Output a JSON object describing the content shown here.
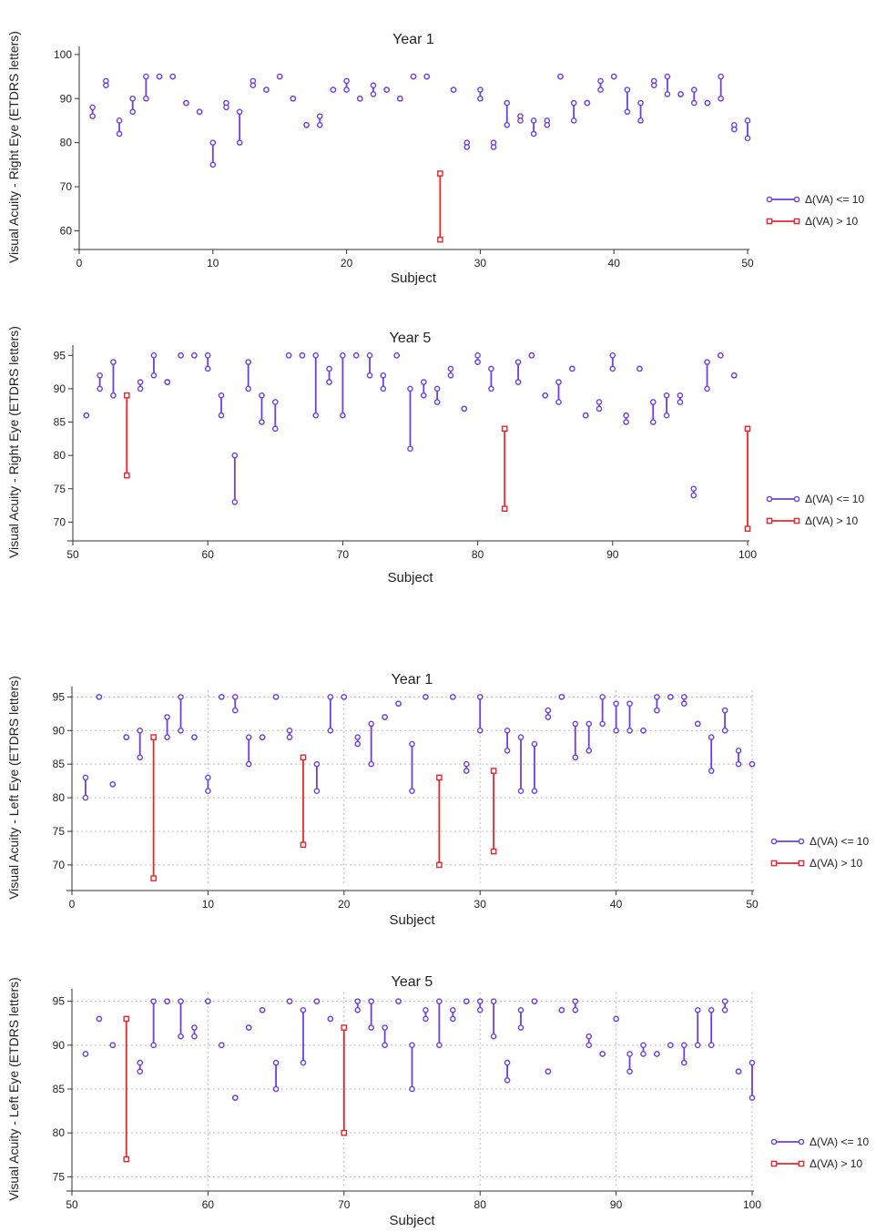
{
  "colors": {
    "small_change": "#6a3ee8",
    "large_change": "#e8252b",
    "grid": "#bdbdbd",
    "axis": "#333333"
  },
  "legend": {
    "small_label": "Δ(VA) <= 10",
    "large_label": "Δ(VA) > 10"
  },
  "chart_data": [
    {
      "type": "dumbbell",
      "title": "Year 1",
      "xlabel": "Subject",
      "ylabel": "Visual Acuity - Right Eye (ETDRS letters)",
      "xlim": [
        0,
        50
      ],
      "ylim": [
        57,
        101
      ],
      "xticks": [
        0,
        10,
        20,
        30,
        40,
        50
      ],
      "yticks": [
        60,
        70,
        80,
        90,
        100
      ],
      "grid": false,
      "legend_position": "right",
      "points": [
        {
          "x": 1,
          "a": 88,
          "b": 86
        },
        {
          "x": 2,
          "a": 94,
          "b": 93
        },
        {
          "x": 3,
          "a": 85,
          "b": 82
        },
        {
          "x": 4,
          "a": 90,
          "b": 87
        },
        {
          "x": 5,
          "a": 95,
          "b": 90
        },
        {
          "x": 6,
          "a": 95,
          "b": 95
        },
        {
          "x": 7,
          "a": 95,
          "b": 95
        },
        {
          "x": 8,
          "a": 89,
          "b": 89
        },
        {
          "x": 9,
          "a": 87,
          "b": 87
        },
        {
          "x": 10,
          "a": 80,
          "b": 75
        },
        {
          "x": 11,
          "a": 89,
          "b": 88
        },
        {
          "x": 12,
          "a": 87,
          "b": 80
        },
        {
          "x": 13,
          "a": 94,
          "b": 93
        },
        {
          "x": 14,
          "a": 92,
          "b": 92
        },
        {
          "x": 15,
          "a": 95,
          "b": 95
        },
        {
          "x": 16,
          "a": 90,
          "b": 90
        },
        {
          "x": 17,
          "a": 84,
          "b": 84
        },
        {
          "x": 18,
          "a": 86,
          "b": 84
        },
        {
          "x": 19,
          "a": 92,
          "b": 92
        },
        {
          "x": 20,
          "a": 94,
          "b": 92
        },
        {
          "x": 21,
          "a": 90,
          "b": 90
        },
        {
          "x": 22,
          "a": 93,
          "b": 91
        },
        {
          "x": 23,
          "a": 92,
          "b": 92
        },
        {
          "x": 24,
          "a": 90,
          "b": 90
        },
        {
          "x": 25,
          "a": 95,
          "b": 95
        },
        {
          "x": 26,
          "a": 95,
          "b": 95
        },
        {
          "x": 27,
          "a": 73,
          "b": 58
        },
        {
          "x": 28,
          "a": 92,
          "b": 92
        },
        {
          "x": 29,
          "a": 80,
          "b": 79
        },
        {
          "x": 30,
          "a": 92,
          "b": 90
        },
        {
          "x": 31,
          "a": 80,
          "b": 79
        },
        {
          "x": 32,
          "a": 89,
          "b": 84
        },
        {
          "x": 33,
          "a": 86,
          "b": 85
        },
        {
          "x": 34,
          "a": 85,
          "b": 82
        },
        {
          "x": 35,
          "a": 85,
          "b": 84
        },
        {
          "x": 36,
          "a": 95,
          "b": 95
        },
        {
          "x": 37,
          "a": 89,
          "b": 85
        },
        {
          "x": 38,
          "a": 89,
          "b": 89
        },
        {
          "x": 39,
          "a": 94,
          "b": 92
        },
        {
          "x": 40,
          "a": 95,
          "b": 95
        },
        {
          "x": 41,
          "a": 92,
          "b": 87
        },
        {
          "x": 42,
          "a": 89,
          "b": 85
        },
        {
          "x": 43,
          "a": 94,
          "b": 93
        },
        {
          "x": 44,
          "a": 95,
          "b": 91
        },
        {
          "x": 45,
          "a": 91,
          "b": 91
        },
        {
          "x": 46,
          "a": 92,
          "b": 89
        },
        {
          "x": 47,
          "a": 89,
          "b": 89
        },
        {
          "x": 48,
          "a": 95,
          "b": 90
        },
        {
          "x": 49,
          "a": 84,
          "b": 83
        },
        {
          "x": 50,
          "a": 85,
          "b": 81
        }
      ]
    },
    {
      "type": "dumbbell",
      "title": "Year 5",
      "xlabel": "Subject",
      "ylabel": "Visual Acuity - Right Eye (ETDRS letters)",
      "xlim": [
        50,
        100
      ],
      "ylim": [
        68,
        96
      ],
      "xticks": [
        50,
        60,
        70,
        80,
        90,
        100
      ],
      "yticks": [
        70,
        75,
        80,
        85,
        90,
        95
      ],
      "grid": false,
      "legend_position": "right",
      "points": [
        {
          "x": 51,
          "a": 86,
          "b": 86
        },
        {
          "x": 52,
          "a": 92,
          "b": 90
        },
        {
          "x": 53,
          "a": 94,
          "b": 89
        },
        {
          "x": 54,
          "a": 89,
          "b": 77
        },
        {
          "x": 55,
          "a": 91,
          "b": 90
        },
        {
          "x": 56,
          "a": 95,
          "b": 92
        },
        {
          "x": 57,
          "a": 91,
          "b": 91
        },
        {
          "x": 58,
          "a": 95,
          "b": 95
        },
        {
          "x": 59,
          "a": 95,
          "b": 95
        },
        {
          "x": 60,
          "a": 95,
          "b": 93
        },
        {
          "x": 61,
          "a": 89,
          "b": 86
        },
        {
          "x": 62,
          "a": 80,
          "b": 73
        },
        {
          "x": 63,
          "a": 94,
          "b": 90
        },
        {
          "x": 64,
          "a": 89,
          "b": 85
        },
        {
          "x": 65,
          "a": 88,
          "b": 84
        },
        {
          "x": 66,
          "a": 95,
          "b": 95
        },
        {
          "x": 67,
          "a": 95,
          "b": 95
        },
        {
          "x": 68,
          "a": 95,
          "b": 86
        },
        {
          "x": 69,
          "a": 93,
          "b": 91
        },
        {
          "x": 70,
          "a": 95,
          "b": 86
        },
        {
          "x": 71,
          "a": 95,
          "b": 95
        },
        {
          "x": 72,
          "a": 95,
          "b": 92
        },
        {
          "x": 73,
          "a": 92,
          "b": 90
        },
        {
          "x": 74,
          "a": 95,
          "b": 95
        },
        {
          "x": 75,
          "a": 90,
          "b": 81
        },
        {
          "x": 76,
          "a": 91,
          "b": 89
        },
        {
          "x": 77,
          "a": 90,
          "b": 88
        },
        {
          "x": 78,
          "a": 93,
          "b": 92
        },
        {
          "x": 79,
          "a": 87,
          "b": 87
        },
        {
          "x": 80,
          "a": 95,
          "b": 94
        },
        {
          "x": 81,
          "a": 93,
          "b": 90
        },
        {
          "x": 82,
          "a": 84,
          "b": 72
        },
        {
          "x": 83,
          "a": 94,
          "b": 91
        },
        {
          "x": 84,
          "a": 95,
          "b": 95
        },
        {
          "x": 85,
          "a": 89,
          "b": 89
        },
        {
          "x": 86,
          "a": 91,
          "b": 88
        },
        {
          "x": 87,
          "a": 93,
          "b": 93
        },
        {
          "x": 88,
          "a": 86,
          "b": 86
        },
        {
          "x": 89,
          "a": 88,
          "b": 87
        },
        {
          "x": 90,
          "a": 95,
          "b": 93
        },
        {
          "x": 91,
          "a": 86,
          "b": 85
        },
        {
          "x": 92,
          "a": 93,
          "b": 93
        },
        {
          "x": 93,
          "a": 88,
          "b": 85
        },
        {
          "x": 94,
          "a": 89,
          "b": 86
        },
        {
          "x": 95,
          "a": 89,
          "b": 88
        },
        {
          "x": 96,
          "a": 75,
          "b": 74
        },
        {
          "x": 97,
          "a": 94,
          "b": 90
        },
        {
          "x": 98,
          "a": 95,
          "b": 95
        },
        {
          "x": 99,
          "a": 92,
          "b": 92
        },
        {
          "x": 100,
          "a": 84,
          "b": 69
        }
      ]
    },
    {
      "type": "dumbbell",
      "title": "Year 1",
      "xlabel": "Subject",
      "ylabel": "Visual Acuity - Left Eye (ETDRS letters)",
      "xlim": [
        0,
        50
      ],
      "ylim": [
        67,
        96
      ],
      "xticks": [
        0,
        10,
        20,
        30,
        40,
        50
      ],
      "yticks": [
        70,
        75,
        80,
        85,
        90,
        95
      ],
      "grid": true,
      "legend_position": "right",
      "points": [
        {
          "x": 1,
          "a": 83,
          "b": 80
        },
        {
          "x": 2,
          "a": 95,
          "b": 95
        },
        {
          "x": 3,
          "a": 82,
          "b": 82
        },
        {
          "x": 4,
          "a": 89,
          "b": 89
        },
        {
          "x": 5,
          "a": 90,
          "b": 86
        },
        {
          "x": 6,
          "a": 89,
          "b": 68
        },
        {
          "x": 7,
          "a": 92,
          "b": 89
        },
        {
          "x": 8,
          "a": 95,
          "b": 90
        },
        {
          "x": 9,
          "a": 89,
          "b": 89
        },
        {
          "x": 10,
          "a": 83,
          "b": 81
        },
        {
          "x": 11,
          "a": 95,
          "b": 95
        },
        {
          "x": 12,
          "a": 95,
          "b": 93
        },
        {
          "x": 13,
          "a": 89,
          "b": 85
        },
        {
          "x": 14,
          "a": 89,
          "b": 89
        },
        {
          "x": 15,
          "a": 95,
          "b": 95
        },
        {
          "x": 16,
          "a": 90,
          "b": 89
        },
        {
          "x": 17,
          "a": 86,
          "b": 73
        },
        {
          "x": 18,
          "a": 85,
          "b": 81
        },
        {
          "x": 19,
          "a": 95,
          "b": 90
        },
        {
          "x": 20,
          "a": 95,
          "b": 95
        },
        {
          "x": 21,
          "a": 89,
          "b": 88
        },
        {
          "x": 22,
          "a": 91,
          "b": 85
        },
        {
          "x": 23,
          "a": 92,
          "b": 92
        },
        {
          "x": 24,
          "a": 94,
          "b": 94
        },
        {
          "x": 25,
          "a": 88,
          "b": 81
        },
        {
          "x": 26,
          "a": 95,
          "b": 95
        },
        {
          "x": 27,
          "a": 83,
          "b": 70
        },
        {
          "x": 28,
          "a": 95,
          "b": 95
        },
        {
          "x": 29,
          "a": 85,
          "b": 84
        },
        {
          "x": 30,
          "a": 95,
          "b": 90
        },
        {
          "x": 31,
          "a": 84,
          "b": 72
        },
        {
          "x": 32,
          "a": 90,
          "b": 87
        },
        {
          "x": 33,
          "a": 89,
          "b": 81
        },
        {
          "x": 34,
          "a": 88,
          "b": 81
        },
        {
          "x": 35,
          "a": 93,
          "b": 92
        },
        {
          "x": 36,
          "a": 95,
          "b": 95
        },
        {
          "x": 37,
          "a": 91,
          "b": 86
        },
        {
          "x": 38,
          "a": 91,
          "b": 87
        },
        {
          "x": 39,
          "a": 95,
          "b": 91
        },
        {
          "x": 40,
          "a": 94,
          "b": 90
        },
        {
          "x": 41,
          "a": 94,
          "b": 90
        },
        {
          "x": 42,
          "a": 90,
          "b": 90
        },
        {
          "x": 43,
          "a": 95,
          "b": 93
        },
        {
          "x": 44,
          "a": 95,
          "b": 95
        },
        {
          "x": 45,
          "a": 95,
          "b": 94
        },
        {
          "x": 46,
          "a": 91,
          "b": 91
        },
        {
          "x": 47,
          "a": 89,
          "b": 84
        },
        {
          "x": 48,
          "a": 93,
          "b": 90
        },
        {
          "x": 49,
          "a": 87,
          "b": 85
        },
        {
          "x": 50,
          "a": 85,
          "b": 85
        }
      ]
    },
    {
      "type": "dumbbell",
      "title": "Year 5",
      "xlabel": "Subject",
      "ylabel": "Visual Acuity - Left Eye (ETDRS letters)",
      "xlim": [
        50,
        100
      ],
      "ylim": [
        74,
        96
      ],
      "xticks": [
        50,
        60,
        70,
        80,
        90,
        100
      ],
      "yticks": [
        75,
        80,
        85,
        90,
        95
      ],
      "grid": true,
      "legend_position": "right",
      "points": [
        {
          "x": 51,
          "a": 89,
          "b": 89
        },
        {
          "x": 52,
          "a": 93,
          "b": 93
        },
        {
          "x": 53,
          "a": 90,
          "b": 90
        },
        {
          "x": 54,
          "a": 93,
          "b": 77
        },
        {
          "x": 55,
          "a": 88,
          "b": 87
        },
        {
          "x": 56,
          "a": 95,
          "b": 90
        },
        {
          "x": 57,
          "a": 95,
          "b": 95
        },
        {
          "x": 58,
          "a": 95,
          "b": 91
        },
        {
          "x": 59,
          "a": 92,
          "b": 91
        },
        {
          "x": 60,
          "a": 95,
          "b": 95
        },
        {
          "x": 61,
          "a": 90,
          "b": 90
        },
        {
          "x": 62,
          "a": 84,
          "b": 84
        },
        {
          "x": 63,
          "a": 92,
          "b": 92
        },
        {
          "x": 64,
          "a": 94,
          "b": 94
        },
        {
          "x": 65,
          "a": 88,
          "b": 85
        },
        {
          "x": 66,
          "a": 95,
          "b": 95
        },
        {
          "x": 67,
          "a": 94,
          "b": 88
        },
        {
          "x": 68,
          "a": 95,
          "b": 95
        },
        {
          "x": 69,
          "a": 93,
          "b": 93
        },
        {
          "x": 70,
          "a": 92,
          "b": 80
        },
        {
          "x": 71,
          "a": 95,
          "b": 94
        },
        {
          "x": 72,
          "a": 95,
          "b": 92
        },
        {
          "x": 73,
          "a": 92,
          "b": 90
        },
        {
          "x": 74,
          "a": 95,
          "b": 95
        },
        {
          "x": 75,
          "a": 90,
          "b": 85
        },
        {
          "x": 76,
          "a": 94,
          "b": 93
        },
        {
          "x": 77,
          "a": 95,
          "b": 90
        },
        {
          "x": 78,
          "a": 94,
          "b": 93
        },
        {
          "x": 79,
          "a": 95,
          "b": 95
        },
        {
          "x": 80,
          "a": 95,
          "b": 94
        },
        {
          "x": 81,
          "a": 95,
          "b": 91
        },
        {
          "x": 82,
          "a": 88,
          "b": 86
        },
        {
          "x": 83,
          "a": 94,
          "b": 92
        },
        {
          "x": 84,
          "a": 95,
          "b": 95
        },
        {
          "x": 85,
          "a": 87,
          "b": 87
        },
        {
          "x": 86,
          "a": 94,
          "b": 94
        },
        {
          "x": 87,
          "a": 95,
          "b": 94
        },
        {
          "x": 88,
          "a": 91,
          "b": 90
        },
        {
          "x": 89,
          "a": 89,
          "b": 89
        },
        {
          "x": 90,
          "a": 93,
          "b": 93
        },
        {
          "x": 91,
          "a": 89,
          "b": 87
        },
        {
          "x": 92,
          "a": 90,
          "b": 89
        },
        {
          "x": 93,
          "a": 89,
          "b": 89
        },
        {
          "x": 94,
          "a": 90,
          "b": 90
        },
        {
          "x": 95,
          "a": 90,
          "b": 88
        },
        {
          "x": 96,
          "a": 94,
          "b": 90
        },
        {
          "x": 97,
          "a": 94,
          "b": 90
        },
        {
          "x": 98,
          "a": 95,
          "b": 94
        },
        {
          "x": 99,
          "a": 87,
          "b": 87
        },
        {
          "x": 100,
          "a": 88,
          "b": 84
        }
      ]
    }
  ]
}
